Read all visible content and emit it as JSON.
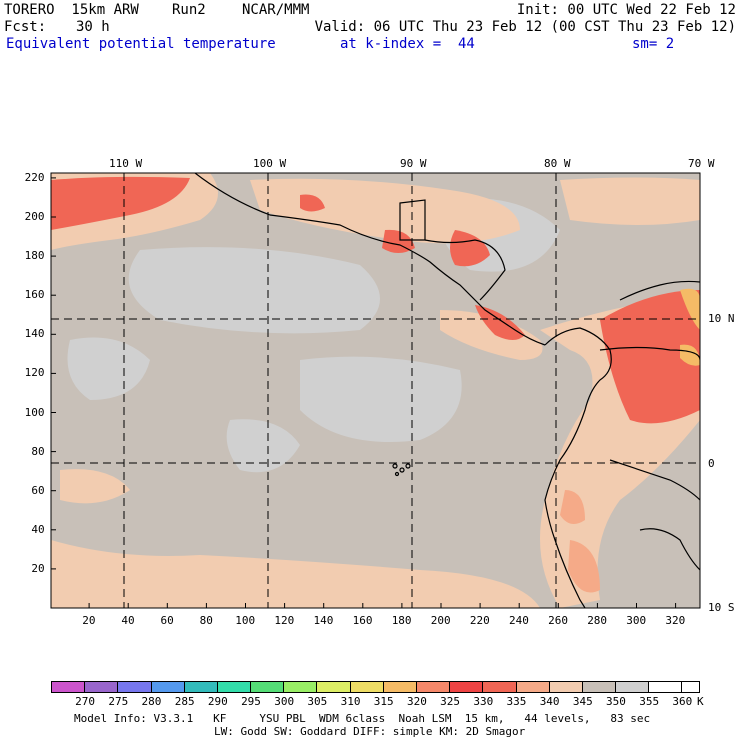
{
  "header": {
    "model": "TORERO  15km ARW",
    "run": "Run2",
    "org": "NCAR/MMM",
    "init": "Init: 00 UTC Wed 22 Feb 12",
    "fcst_label": "Fcst:",
    "fcst_value": "30 h",
    "valid": "Valid: 06 UTC Thu 23 Feb 12 (00 CST Thu 23 Feb 12)",
    "field": "Equivalent potential temperature",
    "level": "at k-index =  44",
    "smooth": "sm= 2"
  },
  "map": {
    "x_ticks": [
      "20",
      "40",
      "60",
      "80",
      "100",
      "120",
      "140",
      "160",
      "180",
      "200",
      "220",
      "240",
      "260",
      "280",
      "300",
      "320"
    ],
    "y_ticks": [
      "20",
      "40",
      "60",
      "80",
      "100",
      "120",
      "140",
      "160",
      "180",
      "200",
      "220"
    ],
    "lon_labels": [
      "110 W",
      "100 W",
      "90 W",
      "80 W",
      "70 W"
    ],
    "lat_labels": [
      "10 N",
      "0",
      "10 S"
    ],
    "colors": {
      "land_line": "#000000",
      "ocean_base": "#c8c0b8"
    }
  },
  "colorbar": {
    "unit": "K",
    "labels": [
      "270",
      "275",
      "280",
      "285",
      "290",
      "295",
      "300",
      "305",
      "310",
      "315",
      "320",
      "325",
      "330",
      "335",
      "340",
      "345",
      "350",
      "355",
      "360"
    ],
    "colors": [
      "#cc55cc",
      "#9966cc",
      "#7777ee",
      "#5599ee",
      "#33bbbb",
      "#33ddaa",
      "#55dd77",
      "#99ee66",
      "#ddee66",
      "#eedd66",
      "#f5bb66",
      "#f5886a",
      "#ee4444",
      "#f06655",
      "#f5aa88",
      "#f2ccb0",
      "#c8c0b8",
      "#d0d0d0",
      "#ffffff"
    ]
  },
  "footer": {
    "line1": "Model Info: V3.3.1   KF     YSU PBL  WDM 6class  Noah LSM  15 km,   44 levels,   83 sec",
    "line2": "LW: Godd SW: Goddard DIFF: simple KM: 2D Smagor"
  }
}
